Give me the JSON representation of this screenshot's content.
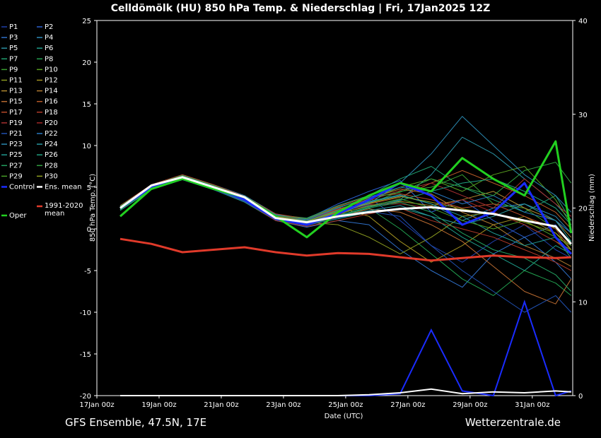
{
  "chart_data": {
    "type": "line",
    "title": "Celldömölk  (HU)  850 hPa Temp. & Niederschlag | Fri, 17Jan2025 12Z",
    "footer_left": "GFS Ensemble, 47.5N, 17E",
    "footer_right": "Wetterzentrale.de",
    "y_label": "850 hPa Temp. (°C)",
    "y2_label": "Niederschlag (mm)",
    "x_label": "Date (UTC)",
    "x": [
      0.75,
      1.75,
      2.75,
      3.75,
      4.75,
      5.75,
      6.75,
      7.75,
      8.75,
      9.75,
      10.75,
      11.75,
      12.75,
      13.75,
      14.75,
      15.25
    ],
    "xlim": [
      0,
      15.3
    ],
    "xticks": [
      {
        "value": 0,
        "label": "17Jan 00z"
      },
      {
        "value": 2,
        "label": "19Jan 00z"
      },
      {
        "value": 4,
        "label": "21Jan 00z"
      },
      {
        "value": 6,
        "label": "23Jan 00z"
      },
      {
        "value": 8,
        "label": "25Jan 00z"
      },
      {
        "value": 10,
        "label": "27Jan 00z"
      },
      {
        "value": 12,
        "label": "29Jan 00z"
      },
      {
        "value": 14,
        "label": "31Jan 00z"
      }
    ],
    "ylim": [
      -20,
      25
    ],
    "yticks": [
      -20,
      -15,
      -10,
      -5,
      0,
      5,
      10,
      15,
      20,
      25
    ],
    "y2lim": [
      0,
      40
    ],
    "y2ticks": [
      0,
      10,
      20,
      30,
      40
    ],
    "grid": false,
    "series": [
      {
        "name": "P1",
        "color": "#1f3fa8",
        "linewidth": 1,
        "values": [
          2.3,
          4.9,
          6.1,
          4.8,
          3.3,
          1.2,
          0.9,
          2.5,
          3.8,
          1.0,
          -2.0,
          -4.0,
          -1.5,
          0.5,
          -2.5,
          -3.5
        ]
      },
      {
        "name": "P2",
        "color": "#2a5fd0",
        "linewidth": 1,
        "values": [
          2.6,
          5.1,
          6.3,
          5.1,
          3.6,
          1.6,
          1.2,
          3.0,
          4.5,
          5.8,
          2.0,
          3.5,
          1.0,
          -1.0,
          0.5,
          -2.0
        ]
      },
      {
        "name": "P3",
        "color": "#2f70c8",
        "linewidth": 1,
        "values": [
          2.4,
          5.0,
          6.0,
          4.9,
          3.4,
          1.0,
          0.2,
          1.0,
          0.5,
          -2.5,
          -5.0,
          -7.0,
          -3.0,
          -1.0,
          -4.0,
          -6.0
        ]
      },
      {
        "name": "P4",
        "color": "#2e8ab8",
        "linewidth": 1,
        "values": [
          2.7,
          5.3,
          6.5,
          5.3,
          4.0,
          1.8,
          1.0,
          2.0,
          3.2,
          4.0,
          3.0,
          1.0,
          2.5,
          3.0,
          1.5,
          -0.5
        ]
      },
      {
        "name": "P5",
        "color": "#2a8fa0",
        "linewidth": 1,
        "values": [
          2.5,
          5.0,
          6.2,
          5.0,
          3.6,
          1.4,
          0.7,
          1.8,
          2.8,
          3.5,
          6.5,
          11.0,
          9.0,
          6.0,
          3.0,
          1.0
        ]
      },
      {
        "name": "P6",
        "color": "#1e9c8a",
        "linewidth": 1,
        "values": [
          2.2,
          4.7,
          5.9,
          4.7,
          3.2,
          1.0,
          0.5,
          1.2,
          2.0,
          2.5,
          1.5,
          -1.0,
          -3.0,
          -5.0,
          -2.0,
          -3.0
        ]
      },
      {
        "name": "P7",
        "color": "#20a070",
        "linewidth": 1,
        "values": [
          2.8,
          5.2,
          6.4,
          5.2,
          3.9,
          1.7,
          1.3,
          2.8,
          4.0,
          6.0,
          7.5,
          5.0,
          3.5,
          2.0,
          4.0,
          1.0
        ]
      },
      {
        "name": "P8",
        "color": "#22a050",
        "linewidth": 1,
        "values": [
          2.4,
          4.9,
          6.1,
          5.0,
          3.4,
          1.2,
          0.6,
          1.6,
          2.5,
          0.0,
          -3.0,
          -6.0,
          -8.0,
          -5.0,
          -6.5,
          -8.0
        ]
      },
      {
        "name": "P9",
        "color": "#3aa030",
        "linewidth": 1,
        "values": [
          2.6,
          5.1,
          6.2,
          5.0,
          3.7,
          1.5,
          0.9,
          2.2,
          3.0,
          4.5,
          5.0,
          6.5,
          3.0,
          2.5,
          0.0,
          -1.5
        ]
      },
      {
        "name": "P10",
        "color": "#5aa020",
        "linewidth": 1,
        "values": [
          2.3,
          4.8,
          6.0,
          4.8,
          3.5,
          1.3,
          0.4,
          1.5,
          3.5,
          5.0,
          6.0,
          4.5,
          6.5,
          7.5,
          3.5,
          0.5
        ]
      },
      {
        "name": "P11",
        "color": "#8a9a20",
        "linewidth": 1,
        "values": [
          2.5,
          5.0,
          6.3,
          5.1,
          3.6,
          1.4,
          0.8,
          0.5,
          -1.0,
          -3.0,
          -1.0,
          1.5,
          2.0,
          0.5,
          -1.5,
          -2.5
        ]
      },
      {
        "name": "P12",
        "color": "#a09020",
        "linewidth": 1,
        "values": [
          2.7,
          5.2,
          6.4,
          5.2,
          3.8,
          1.6,
          1.1,
          2.6,
          1.5,
          -1.5,
          -4.0,
          -2.0,
          0.5,
          1.5,
          -0.5,
          -2.0
        ]
      },
      {
        "name": "P13",
        "color": "#b08a30",
        "linewidth": 1,
        "values": [
          2.4,
          5.0,
          6.1,
          4.9,
          3.5,
          1.3,
          0.7,
          1.9,
          2.7,
          3.3,
          2.8,
          3.5,
          4.5,
          2.5,
          1.0,
          -1.0
        ]
      },
      {
        "name": "P14",
        "color": "#b07a30",
        "linewidth": 1,
        "values": [
          2.6,
          5.1,
          6.2,
          5.0,
          3.6,
          1.5,
          1.0,
          2.3,
          3.6,
          4.8,
          4.2,
          2.0,
          0.5,
          -2.0,
          -3.5,
          -4.5
        ]
      },
      {
        "name": "P15",
        "color": "#b86a30",
        "linewidth": 1,
        "values": [
          2.5,
          4.9,
          6.0,
          4.8,
          3.4,
          1.1,
          0.6,
          1.4,
          2.4,
          2.0,
          0.5,
          -1.5,
          -4.5,
          -7.5,
          -9.0,
          -6.0
        ]
      },
      {
        "name": "P16",
        "color": "#b85a28",
        "linewidth": 1,
        "values": [
          2.3,
          4.8,
          6.1,
          4.9,
          3.5,
          1.4,
          0.8,
          2.0,
          3.0,
          3.8,
          5.5,
          7.0,
          5.5,
          4.0,
          2.0,
          0.0
        ]
      },
      {
        "name": "P17",
        "color": "#b84a28",
        "linewidth": 1,
        "values": [
          2.8,
          5.3,
          6.5,
          5.3,
          3.9,
          1.8,
          1.2,
          2.7,
          3.9,
          4.2,
          3.5,
          2.5,
          3.0,
          1.5,
          0.0,
          -2.5
        ]
      },
      {
        "name": "P18",
        "color": "#b03a28",
        "linewidth": 1,
        "values": [
          2.4,
          4.9,
          6.0,
          4.8,
          3.3,
          1.0,
          0.3,
          1.0,
          1.8,
          2.5,
          1.0,
          0.0,
          -1.0,
          -2.5,
          -4.0,
          -5.0
        ]
      },
      {
        "name": "P19",
        "color": "#a83030",
        "linewidth": 1,
        "values": [
          2.6,
          5.2,
          6.3,
          5.1,
          3.7,
          1.6,
          1.0,
          2.4,
          3.4,
          4.6,
          5.5,
          4.0,
          2.5,
          6.0,
          3.0,
          1.5
        ]
      },
      {
        "name": "P20",
        "color": "#a02828",
        "linewidth": 1,
        "values": [
          2.5,
          5.0,
          6.2,
          5.0,
          3.6,
          1.4,
          0.7,
          1.7,
          2.9,
          3.0,
          2.5,
          3.5,
          2.0,
          0.5,
          -1.5,
          -3.0
        ]
      },
      {
        "name": "P21",
        "color": "#2050b0",
        "linewidth": 1,
        "values": [
          2.3,
          4.8,
          5.9,
          4.7,
          3.3,
          1.1,
          0.4,
          1.3,
          2.1,
          1.5,
          -2.0,
          -5.0,
          -7.5,
          -10.0,
          -8.0,
          -10.0
        ]
      },
      {
        "name": "P22",
        "color": "#2878c0",
        "linewidth": 1,
        "values": [
          2.7,
          5.2,
          6.4,
          5.2,
          3.8,
          1.7,
          1.1,
          2.5,
          3.8,
          5.0,
          4.5,
          3.0,
          4.0,
          2.0,
          1.0,
          -0.5
        ]
      },
      {
        "name": "P23",
        "color": "#2a88b0",
        "linewidth": 1,
        "values": [
          2.5,
          5.0,
          6.1,
          4.9,
          3.5,
          1.3,
          0.8,
          1.9,
          3.0,
          5.5,
          9.0,
          13.5,
          10.0,
          6.5,
          4.0,
          2.0
        ]
      },
      {
        "name": "P24",
        "color": "#2898a0",
        "linewidth": 1,
        "values": [
          2.4,
          4.9,
          6.0,
          4.8,
          3.4,
          1.2,
          0.5,
          1.5,
          2.2,
          2.8,
          1.5,
          0.5,
          1.5,
          3.0,
          1.0,
          -1.5
        ]
      },
      {
        "name": "P25",
        "color": "#209890",
        "linewidth": 1,
        "values": [
          2.6,
          5.1,
          6.3,
          5.1,
          3.7,
          1.5,
          1.0,
          2.2,
          3.3,
          4.1,
          3.0,
          1.5,
          -0.5,
          -2.0,
          -1.0,
          -3.5
        ]
      },
      {
        "name": "P26",
        "color": "#20a080",
        "linewidth": 1,
        "values": [
          2.5,
          5.0,
          6.2,
          5.0,
          3.5,
          1.3,
          0.7,
          1.6,
          2.6,
          3.4,
          4.5,
          5.5,
          6.0,
          4.5,
          2.5,
          0.5
        ]
      },
      {
        "name": "P27",
        "color": "#22a060",
        "linewidth": 1,
        "values": [
          2.3,
          4.8,
          6.0,
          4.8,
          3.4,
          1.2,
          0.6,
          1.5,
          2.5,
          3.2,
          2.0,
          -0.5,
          -2.5,
          -3.5,
          -5.5,
          -7.5
        ]
      },
      {
        "name": "P28",
        "color": "#30a040",
        "linewidth": 1,
        "values": [
          2.7,
          5.2,
          6.4,
          5.2,
          3.8,
          1.6,
          1.2,
          2.6,
          3.7,
          4.4,
          6.0,
          5.0,
          4.0,
          7.0,
          8.0,
          5.5
        ]
      },
      {
        "name": "P29",
        "color": "#48a028",
        "linewidth": 1,
        "values": [
          2.4,
          4.9,
          6.1,
          4.9,
          3.5,
          1.3,
          0.6,
          1.8,
          2.7,
          3.6,
          2.5,
          1.0,
          0.0,
          1.0,
          -1.0,
          -2.0
        ]
      },
      {
        "name": "P30",
        "color": "#90a020",
        "linewidth": 1,
        "values": [
          2.6,
          5.1,
          6.2,
          5.0,
          3.6,
          1.5,
          0.9,
          2.1,
          3.1,
          3.9,
          3.2,
          2.4,
          1.8,
          0.8,
          -0.5,
          -2.5
        ]
      },
      {
        "name": "Control",
        "color": "#1a2cff",
        "linewidth": 3,
        "values": [
          2.5,
          5.0,
          6.2,
          5.0,
          3.5,
          1.2,
          0.5,
          1.8,
          3.5,
          5.5,
          4.0,
          0.5,
          2.0,
          5.5,
          -1.0,
          -3.0
        ],
        "precip": [
          0,
          0,
          0,
          0,
          0,
          0,
          0,
          0,
          0,
          0.2,
          7,
          0.5,
          0,
          10,
          0,
          0.5
        ]
      },
      {
        "name": "Ens. mean",
        "color": "#ffffff",
        "linewidth": 3,
        "values": [
          2.5,
          5.2,
          6.2,
          5.0,
          3.8,
          1.3,
          0.8,
          1.5,
          2.0,
          2.4,
          2.6,
          2.2,
          1.8,
          1.0,
          0.3,
          -1.8
        ],
        "precip": [
          0,
          0,
          0,
          0,
          0,
          0,
          0,
          0,
          0.1,
          0.3,
          0.7,
          0.2,
          0.4,
          0.3,
          0.5,
          0.4
        ]
      },
      {
        "name": "1991-2020 mean",
        "color": "#e03a2a",
        "linewidth": 3,
        "values": [
          -1.2,
          -1.8,
          -2.8,
          -2.5,
          -2.2,
          -2.8,
          -3.2,
          -2.9,
          -3.0,
          -3.4,
          -3.8,
          -3.5,
          -3.2,
          -3.4,
          -3.5,
          -3.4
        ]
      },
      {
        "name": "Oper",
        "color": "#22d020",
        "linewidth": 3,
        "values": [
          1.5,
          4.8,
          6.0,
          4.8,
          3.8,
          1.5,
          -1.0,
          2.0,
          4.0,
          5.5,
          4.5,
          8.5,
          6.0,
          4.0,
          10.5,
          -0.5
        ]
      }
    ]
  }
}
